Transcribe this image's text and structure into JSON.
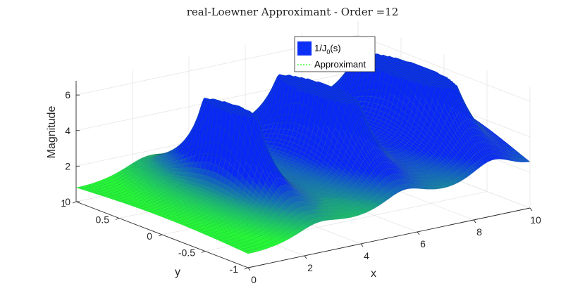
{
  "chart_data": {
    "type": "surface",
    "title": "real-Loewner Approximant - Order =12",
    "xlabel": "x",
    "ylabel": "y",
    "zlabel": "Magnitude",
    "xlim": [
      0,
      10
    ],
    "ylim": [
      -1,
      1
    ],
    "zlim": [
      0,
      6.8
    ],
    "xticks": [
      "0",
      "2",
      "4",
      "6",
      "8",
      "10"
    ],
    "yticks": [
      "-1",
      "-0.5",
      "0",
      "0.5",
      "1"
    ],
    "zticks": [
      "0",
      "2",
      "4",
      "6"
    ],
    "grid": true,
    "legend_position": "top-center",
    "series": [
      {
        "name": "1/J_0(s)",
        "style": "surface",
        "color": "#0b2ff5"
      },
      {
        "name": "Approximant",
        "style": "dashed",
        "color": "#22ff22"
      }
    ],
    "surface_function": "|1/J0(x + i*y)|",
    "peaks": [
      {
        "x": 2.405,
        "y": 0,
        "z": 5.8
      },
      {
        "x": 5.52,
        "y": 0,
        "z": 5.4
      },
      {
        "x": 8.654,
        "y": 0,
        "z": 6.3
      }
    ]
  },
  "legend": {
    "items": [
      {
        "label": "1/J",
        "sub": "0",
        "tail": "(s)"
      },
      {
        "label": "Approximant"
      }
    ]
  }
}
